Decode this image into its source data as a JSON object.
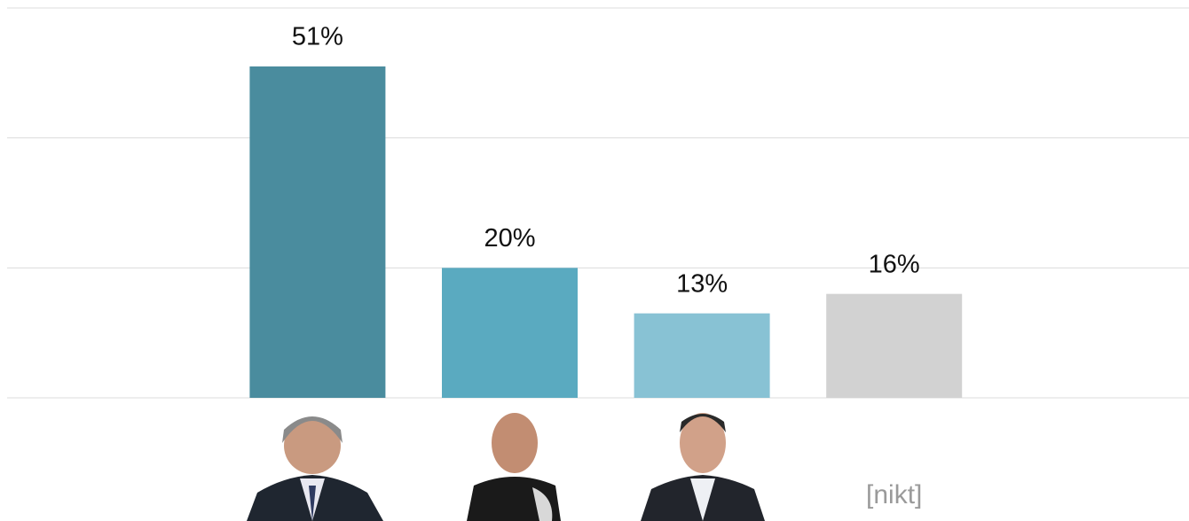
{
  "chart_data": {
    "type": "bar",
    "categories": [
      null,
      null,
      null,
      "[nikt]"
    ],
    "values": [
      51,
      20,
      13,
      16
    ],
    "value_labels": [
      "51%",
      "20%",
      "13%",
      "16%"
    ],
    "colors": [
      "#4a8c9e",
      "#5aaac0",
      "#88c2d4",
      "#d2d2d2"
    ],
    "ylim": [
      0,
      60
    ],
    "yticks": [
      0,
      20,
      40,
      60
    ],
    "grid": true
  }
}
